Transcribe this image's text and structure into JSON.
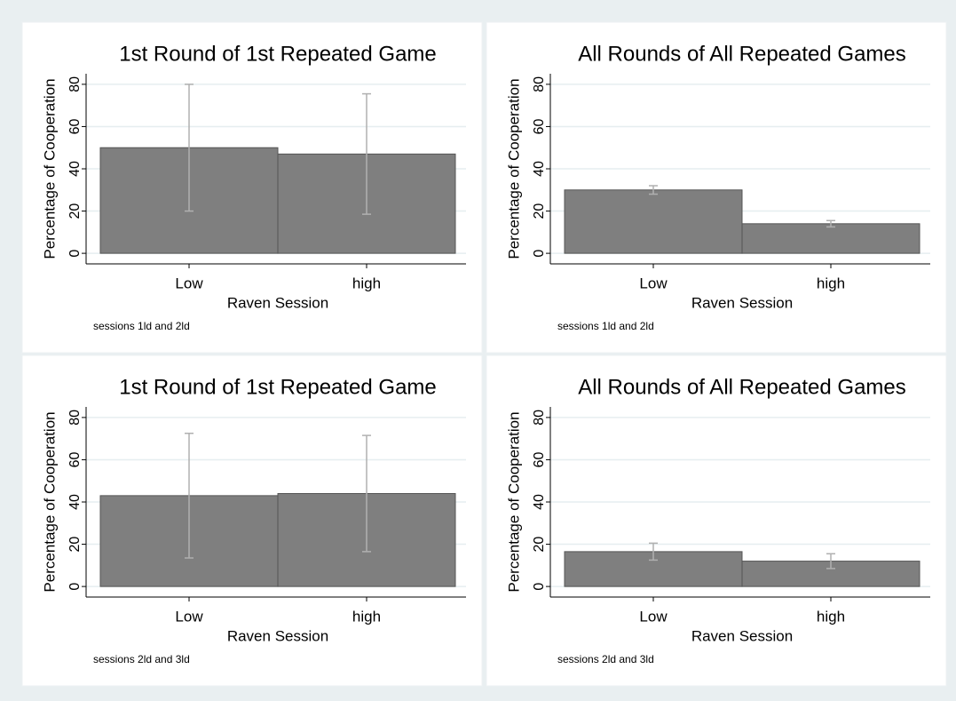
{
  "chart_data": [
    {
      "type": "bar",
      "title": "1st Round of 1st Repeated Game",
      "ylabel": "Percentage of Cooperation",
      "xlabel": "Raven Session",
      "note": "sessions 1ld and 2ld",
      "categories": [
        "Low",
        "high"
      ],
      "values": [
        50,
        47
      ],
      "errors": [
        30,
        28.5
      ],
      "color": "#7f7f7f",
      "error_color": "#b0b0b0",
      "ylim": [
        -5,
        85
      ],
      "yticks": [
        0,
        20,
        40,
        60,
        80
      ],
      "grid": true
    },
    {
      "type": "bar",
      "title": "All Rounds of All Repeated Games",
      "ylabel": "Percentage of Cooperation",
      "xlabel": "Raven Session",
      "note": "sessions 1ld and 2ld",
      "categories": [
        "Low",
        "high"
      ],
      "values": [
        30,
        14
      ],
      "errors": [
        2,
        1.5
      ],
      "color": "#7f7f7f",
      "error_color": "#b0b0b0",
      "ylim": [
        -5,
        85
      ],
      "yticks": [
        0,
        20,
        40,
        60,
        80
      ],
      "grid": true
    },
    {
      "type": "bar",
      "title": "1st Round of 1st Repeated Game",
      "ylabel": "Percentage of Cooperation",
      "xlabel": "Raven Session",
      "note": "sessions 2ld and 3ld",
      "categories": [
        "Low",
        "high"
      ],
      "values": [
        43,
        44
      ],
      "errors": [
        29.5,
        27.5
      ],
      "color": "#7f7f7f",
      "error_color": "#b0b0b0",
      "ylim": [
        -5,
        85
      ],
      "yticks": [
        0,
        20,
        40,
        60,
        80
      ],
      "grid": true
    },
    {
      "type": "bar",
      "title": "All Rounds of All Repeated Games",
      "ylabel": "Percentage of Cooperation",
      "xlabel": "Raven Session",
      "note": "sessions 2ld and 3ld",
      "categories": [
        "Low",
        "high"
      ],
      "values": [
        16.5,
        12
      ],
      "errors": [
        4,
        3.5
      ],
      "color": "#7f7f7f",
      "error_color": "#b0b0b0",
      "ylim": [
        -5,
        85
      ],
      "yticks": [
        0,
        20,
        40,
        60,
        80
      ],
      "grid": true
    }
  ]
}
